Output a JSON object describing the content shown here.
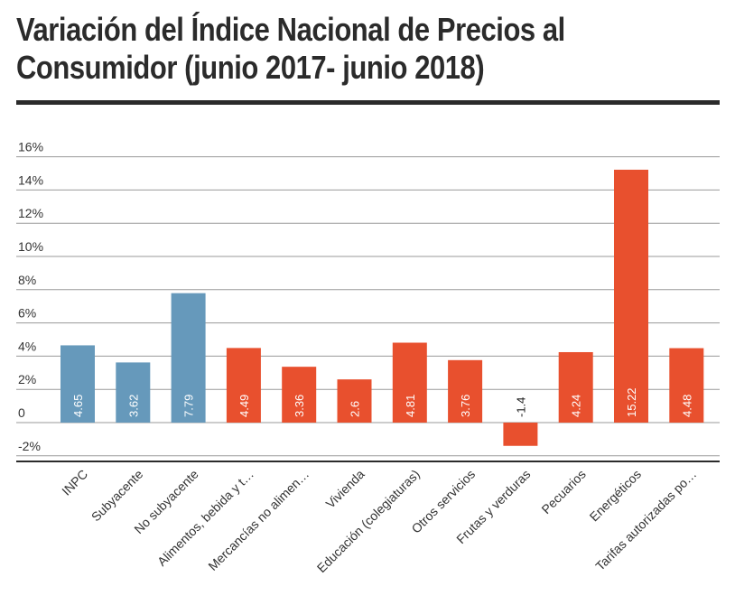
{
  "title": "Variación del Índice Nacional de Precios al Consumidor (junio 2017- junio 2018)",
  "title_lines": [
    "Variación del Índice Nacional de Precios al",
    "Consumidor (junio 2017- junio 2018)"
  ],
  "colors": {
    "subyacente_group": "#6699bb",
    "components": "#e8502e",
    "text": "#2b2b2b",
    "grid": "#9a9a9a",
    "label_on_bar": "#ffffff",
    "label_off_bar": "#222222"
  },
  "chart_data": {
    "type": "bar",
    "title": "Variación del Índice Nacional de Precios al Consumidor (junio 2017- junio 2018)",
    "xlabel": "",
    "ylabel": "",
    "ylim": [
      -2.5,
      16.5
    ],
    "yticks": [
      -2,
      0,
      2,
      4,
      6,
      8,
      10,
      12,
      14,
      16
    ],
    "ytick_labels": [
      "-2%",
      "0",
      "2%",
      "4%",
      "6%",
      "8%",
      "10%",
      "12%",
      "14%",
      "16%"
    ],
    "grid": true,
    "categories": [
      "INPC",
      "Subyacente",
      "No subyacente",
      "Alimentos, bebida y t…",
      "Mercancías no alimen…",
      "Vivienda",
      "Educación (colegiaturas)",
      "Otros servicios",
      "Frutas y verduras",
      "Pecuarios",
      "Energéticos",
      "Tarifas autorizadas po…"
    ],
    "values": [
      4.65,
      3.62,
      7.79,
      4.49,
      3.36,
      2.6,
      4.81,
      3.76,
      -1.4,
      4.24,
      15.22,
      4.48
    ],
    "value_labels": [
      "4.65",
      "3.62",
      "7.79",
      "4.49",
      "3.36",
      "2.6",
      "4.81",
      "3.76",
      "-1.4",
      "4.24",
      "15.22",
      "4.48"
    ],
    "bar_colors": [
      "#6699bb",
      "#6699bb",
      "#6699bb",
      "#e8502e",
      "#e8502e",
      "#e8502e",
      "#e8502e",
      "#e8502e",
      "#e8502e",
      "#e8502e",
      "#e8502e",
      "#e8502e"
    ]
  }
}
